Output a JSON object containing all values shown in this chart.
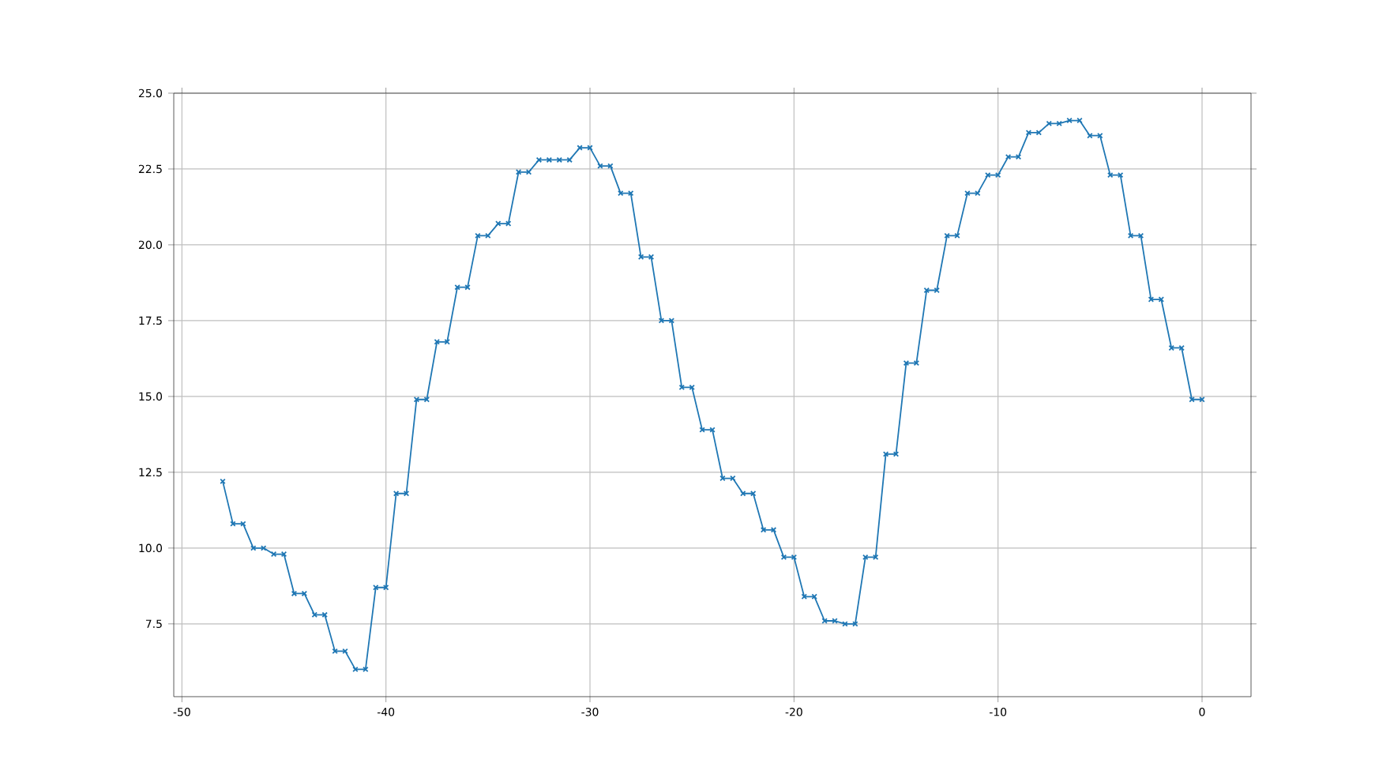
{
  "chart_data": {
    "type": "line",
    "x": [
      -48,
      -47.5,
      -47,
      -46.5,
      -46,
      -45.5,
      -45,
      -44.5,
      -44,
      -43.5,
      -43,
      -42.5,
      -42,
      -41.5,
      -41,
      -40.5,
      -40,
      -39.5,
      -39,
      -38.5,
      -38,
      -37.5,
      -37,
      -36.5,
      -36,
      -35.5,
      -35,
      -34.5,
      -34,
      -33.5,
      -33,
      -32.5,
      -32,
      -31.5,
      -31,
      -30.5,
      -30,
      -29.5,
      -29,
      -28.5,
      -28,
      -27.5,
      -27,
      -26.5,
      -26,
      -25.5,
      -25,
      -24.5,
      -24,
      -23.5,
      -23,
      -22.5,
      -22,
      -21.5,
      -21,
      -20.5,
      -20,
      -19.5,
      -19,
      -18.5,
      -18,
      -17.5,
      -17,
      -16.5,
      -16,
      -15.5,
      -15,
      -14.5,
      -14,
      -13.5,
      -13,
      -12.5,
      -12,
      -11.5,
      -11,
      -10.5,
      -10,
      -9.5,
      -9,
      -8.5,
      -8,
      -7.5,
      -7,
      -6.5,
      -6,
      -5.5,
      -5,
      -4.5,
      -4,
      -3.5,
      -3,
      -2.5,
      -2,
      -1.5,
      -1,
      -0.5,
      0
    ],
    "series": [
      {
        "color": "#1f77b4",
        "values": [
          12.2,
          10.8,
          10.8,
          10.0,
          10.0,
          9.8,
          9.8,
          8.5,
          8.5,
          7.8,
          7.8,
          6.6,
          6.6,
          6.0,
          6.0,
          8.7,
          8.7,
          11.8,
          11.8,
          14.9,
          14.9,
          16.8,
          16.8,
          18.6,
          18.6,
          20.3,
          20.3,
          20.7,
          20.7,
          22.4,
          22.4,
          22.8,
          22.8,
          22.8,
          22.8,
          23.2,
          23.2,
          22.6,
          22.6,
          21.7,
          21.7,
          19.6,
          19.6,
          17.5,
          17.5,
          15.3,
          15.3,
          13.9,
          13.9,
          12.3,
          12.3,
          11.8,
          11.8,
          10.6,
          10.6,
          9.7,
          9.7,
          8.4,
          8.4,
          7.6,
          7.6,
          7.5,
          7.5,
          9.7,
          9.7,
          13.1,
          13.1,
          16.1,
          16.1,
          18.5,
          18.5,
          20.3,
          20.3,
          21.7,
          21.7,
          22.3,
          22.3,
          22.9,
          22.9,
          23.7,
          23.7,
          24.0,
          24.0,
          24.1,
          24.1,
          23.6,
          23.6,
          22.3,
          22.3,
          20.3,
          20.3,
          18.2,
          18.2,
          16.6,
          16.6,
          14.9,
          14.9
        ]
      }
    ],
    "xlim": [
      -50.4,
      2.4
    ],
    "ylim": [
      5.1,
      25
    ],
    "xticks": [
      -50,
      -40,
      -30,
      -20,
      -10,
      0
    ],
    "yticks": [
      7.5,
      {
        "value": 10,
        "label": "10.0"
      },
      12.5,
      {
        "value": 15,
        "label": "15.0"
      },
      17.5,
      {
        "value": 20,
        "label": "20.0"
      },
      22.5,
      {
        "value": 25,
        "label": "25.0"
      }
    ],
    "grid": true,
    "marker": "cross",
    "line_style": "solid"
  }
}
